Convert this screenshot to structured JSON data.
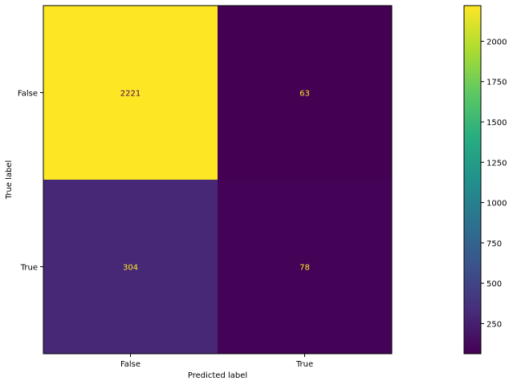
{
  "chart_data": {
    "type": "heatmap",
    "title": "",
    "xlabel": "Predicted label",
    "ylabel": "True label",
    "x_categories": [
      "False",
      "True"
    ],
    "y_categories": [
      "False",
      "True"
    ],
    "values": [
      [
        2221,
        63
      ],
      [
        304,
        78
      ]
    ],
    "colormap": "viridis",
    "colorbar": {
      "min": 63,
      "max": 2221,
      "ticks": [
        250,
        500,
        750,
        1000,
        1250,
        1500,
        1750,
        2000
      ]
    },
    "grid": false
  }
}
